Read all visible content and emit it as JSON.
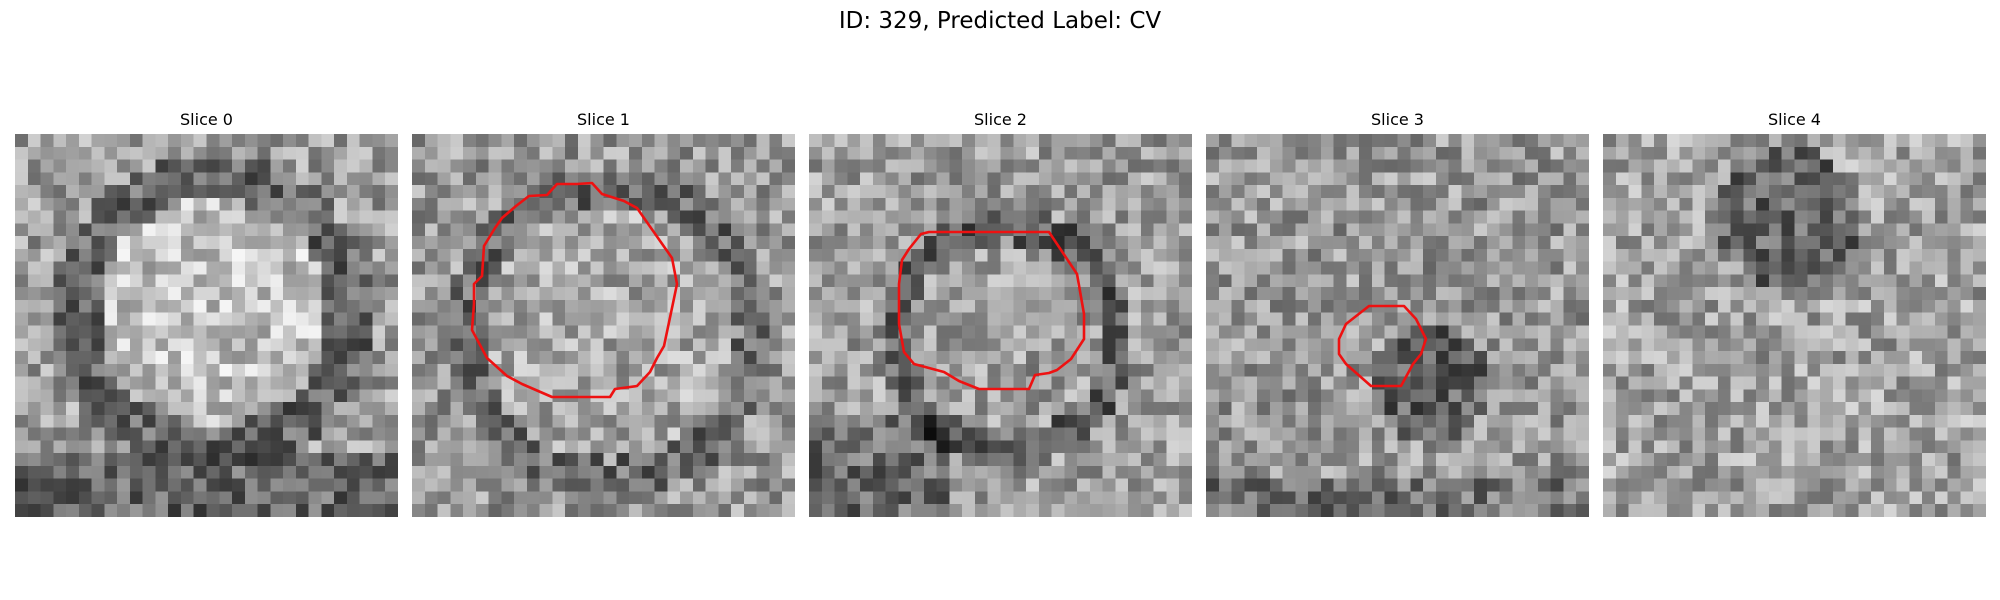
{
  "figure": {
    "title": "ID: 329, Predicted Label: CV"
  },
  "panels": [
    {
      "title": "Slice 0",
      "contour": null
    },
    {
      "title": "Slice 1",
      "contour": "ring-large"
    },
    {
      "title": "Slice 2",
      "contour": "ring-medium"
    },
    {
      "title": "Slice 3",
      "contour": "ring-small"
    },
    {
      "title": "Slice 4",
      "contour": null
    }
  ],
  "colors": {
    "contour": "#ee1111",
    "background": "#ffffff"
  }
}
